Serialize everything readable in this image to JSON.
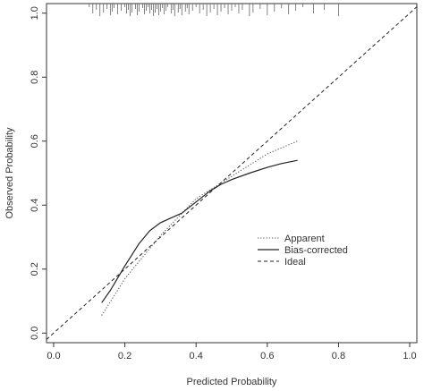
{
  "chart_data": {
    "type": "line",
    "title": "",
    "xlabel": "Predicted Probability",
    "ylabel": "Observed  Probability",
    "xlim": [
      -0.02,
      1.02
    ],
    "ylim": [
      -0.03,
      1.03
    ],
    "x_ticks": [
      {
        "value": 0.0,
        "label": "0.0"
      },
      {
        "value": 0.2,
        "label": "0.2"
      },
      {
        "value": 0.4,
        "label": "0.4"
      },
      {
        "value": 0.6,
        "label": "0.6"
      },
      {
        "value": 0.8,
        "label": "0.8"
      },
      {
        "value": 1.0,
        "label": "1.0"
      }
    ],
    "y_ticks": [
      {
        "value": 0.0,
        "label": "0.0"
      },
      {
        "value": 0.2,
        "label": "0.2"
      },
      {
        "value": 0.4,
        "label": "0.4"
      },
      {
        "value": 0.6,
        "label": "0.6"
      },
      {
        "value": 0.8,
        "label": "0.8"
      },
      {
        "value": 1.0,
        "label": "1.0"
      }
    ],
    "grid": false,
    "legend_position": "right",
    "series": [
      {
        "name": "Apparent",
        "style": "dotted",
        "x": [
          0.135,
          0.2,
          0.3,
          0.4,
          0.5,
          0.6,
          0.685
        ],
        "y": [
          0.055,
          0.17,
          0.305,
          0.42,
          0.49,
          0.56,
          0.6
        ]
      },
      {
        "name": "Bias-corrected",
        "style": "solid",
        "x": [
          0.135,
          0.16,
          0.2,
          0.24,
          0.27,
          0.3,
          0.33,
          0.36,
          0.4,
          0.44,
          0.47,
          0.5,
          0.55,
          0.6,
          0.64,
          0.685
        ],
        "y": [
          0.095,
          0.135,
          0.21,
          0.28,
          0.32,
          0.345,
          0.36,
          0.375,
          0.41,
          0.445,
          0.465,
          0.48,
          0.5,
          0.518,
          0.53,
          0.54
        ]
      },
      {
        "name": "Ideal",
        "style": "dashed",
        "x": [
          -0.02,
          1.02
        ],
        "y": [
          -0.02,
          1.02
        ]
      }
    ],
    "rug": [
      0.1,
      0.11,
      0.12,
      0.13,
      0.14,
      0.15,
      0.16,
      0.165,
      0.17,
      0.18,
      0.19,
      0.2,
      0.205,
      0.21,
      0.215,
      0.22,
      0.23,
      0.235,
      0.24,
      0.25,
      0.255,
      0.26,
      0.265,
      0.27,
      0.275,
      0.28,
      0.285,
      0.29,
      0.295,
      0.3,
      0.305,
      0.31,
      0.315,
      0.32,
      0.33,
      0.335,
      0.34,
      0.35,
      0.355,
      0.36,
      0.37,
      0.375,
      0.38,
      0.39,
      0.4,
      0.41,
      0.42,
      0.43,
      0.44,
      0.45,
      0.46,
      0.47,
      0.48,
      0.49,
      0.5,
      0.51,
      0.52,
      0.53,
      0.55,
      0.56,
      0.58,
      0.6,
      0.62,
      0.64,
      0.66,
      0.68,
      0.7,
      0.73,
      0.76,
      0.8
    ]
  }
}
